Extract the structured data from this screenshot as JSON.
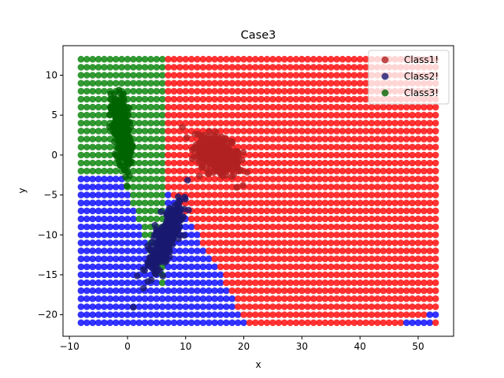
{
  "chart_data": {
    "type": "scatter",
    "title": "Case3",
    "xlabel": "x",
    "ylabel": "y",
    "xlim": [
      -11.1,
      56.1
    ],
    "ylim": [
      -22.7,
      13.7
    ],
    "xticks": [
      -10,
      0,
      10,
      20,
      30,
      40,
      50
    ],
    "yticks": [
      -20,
      -15,
      -10,
      -5,
      0,
      5,
      10
    ],
    "grid": false,
    "legend_position": "top-right",
    "background_grid": {
      "x_start": -8,
      "x_end": 53,
      "x_step": 1,
      "y_start": -21,
      "y_end": 12,
      "y_step": 1,
      "region_colors": {
        "Class1!": "#ff0000",
        "Class2!": "#0000ff",
        "Class3!": "#008000"
      }
    },
    "series": [
      {
        "name": "Class1!",
        "color": "#b22222",
        "center": [
          15.5,
          0
        ],
        "spread": [
          3.6,
          1.9
        ],
        "rotation_deg": -20,
        "count": 350
      },
      {
        "name": "Class2!",
        "color": "#191970",
        "center": [
          6.5,
          -10.5
        ],
        "spread": [
          1.5,
          4.6
        ],
        "rotation_deg": -30,
        "count": 350
      },
      {
        "name": "Class3!",
        "color": "#006400",
        "center": [
          -1,
          3
        ],
        "spread": [
          1.2,
          4.0
        ],
        "rotation_deg": 10,
        "count": 350
      }
    ]
  }
}
